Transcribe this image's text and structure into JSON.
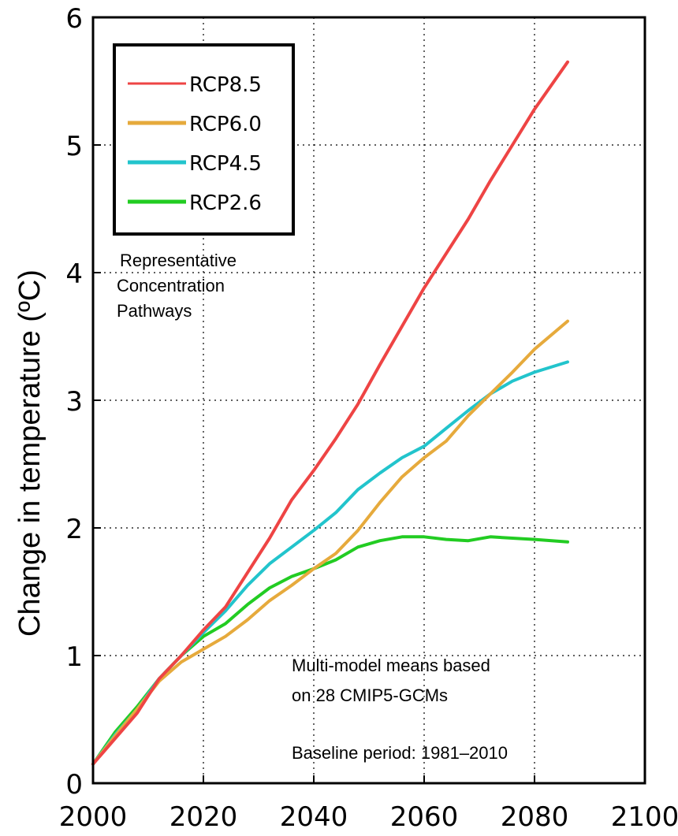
{
  "chart_data": {
    "type": "line",
    "ylabel": "Change in temperature  (ºC)",
    "xlim": [
      2000,
      2100
    ],
    "ylim": [
      0,
      6
    ],
    "x_ticks": [
      "2000",
      "2020",
      "2040",
      "2060",
      "2080",
      "2100"
    ],
    "y_ticks": [
      "0",
      "1",
      "2",
      "3",
      "4",
      "5",
      "6"
    ],
    "grid": "dotted",
    "legend_position": "top-left",
    "legend_title": "Representative Concentration Pathways",
    "annotations": {
      "means_line1": "Multi-model means based",
      "means_line2": "on 28 CMIP5-GCMs",
      "baseline": "Baseline period: 1981–2010"
    },
    "series": [
      {
        "name": "RCP8.5",
        "color": "#ee4444",
        "x": [
          2000,
          2004,
          2008,
          2012,
          2016,
          2020,
          2024,
          2028,
          2032,
          2036,
          2040,
          2044,
          2048,
          2052,
          2056,
          2060,
          2064,
          2068,
          2072,
          2076,
          2080,
          2086
        ],
        "y": [
          0.15,
          0.35,
          0.55,
          0.82,
          1.0,
          1.2,
          1.38,
          1.65,
          1.92,
          2.22,
          2.45,
          2.7,
          2.97,
          3.28,
          3.58,
          3.88,
          4.15,
          4.42,
          4.72,
          5.0,
          5.28,
          5.65
        ]
      },
      {
        "name": "RCP6.0",
        "color": "#e6aa3c",
        "x": [
          2000,
          2004,
          2008,
          2012,
          2016,
          2020,
          2024,
          2028,
          2032,
          2036,
          2040,
          2044,
          2048,
          2052,
          2056,
          2060,
          2064,
          2068,
          2072,
          2076,
          2080,
          2086
        ],
        "y": [
          0.15,
          0.37,
          0.58,
          0.8,
          0.95,
          1.05,
          1.15,
          1.28,
          1.43,
          1.55,
          1.68,
          1.8,
          1.98,
          2.2,
          2.4,
          2.55,
          2.68,
          2.88,
          3.05,
          3.22,
          3.4,
          3.62
        ]
      },
      {
        "name": "RCP4.5",
        "color": "#22c4cc",
        "x": [
          2000,
          2004,
          2008,
          2012,
          2016,
          2020,
          2024,
          2028,
          2032,
          2036,
          2040,
          2044,
          2048,
          2052,
          2056,
          2060,
          2064,
          2068,
          2072,
          2076,
          2080,
          2086
        ],
        "y": [
          0.15,
          0.38,
          0.58,
          0.82,
          1.0,
          1.18,
          1.35,
          1.55,
          1.72,
          1.85,
          1.98,
          2.12,
          2.3,
          2.43,
          2.55,
          2.64,
          2.78,
          2.92,
          3.05,
          3.15,
          3.22,
          3.3
        ]
      },
      {
        "name": "RCP2.6",
        "color": "#22cc22",
        "x": [
          2000,
          2004,
          2008,
          2012,
          2016,
          2020,
          2024,
          2028,
          2032,
          2036,
          2040,
          2044,
          2048,
          2052,
          2056,
          2060,
          2064,
          2068,
          2072,
          2076,
          2080,
          2086
        ],
        "y": [
          0.15,
          0.4,
          0.6,
          0.82,
          1.0,
          1.15,
          1.25,
          1.4,
          1.53,
          1.62,
          1.68,
          1.75,
          1.85,
          1.9,
          1.93,
          1.93,
          1.91,
          1.9,
          1.93,
          1.92,
          1.91,
          1.89
        ]
      }
    ]
  }
}
